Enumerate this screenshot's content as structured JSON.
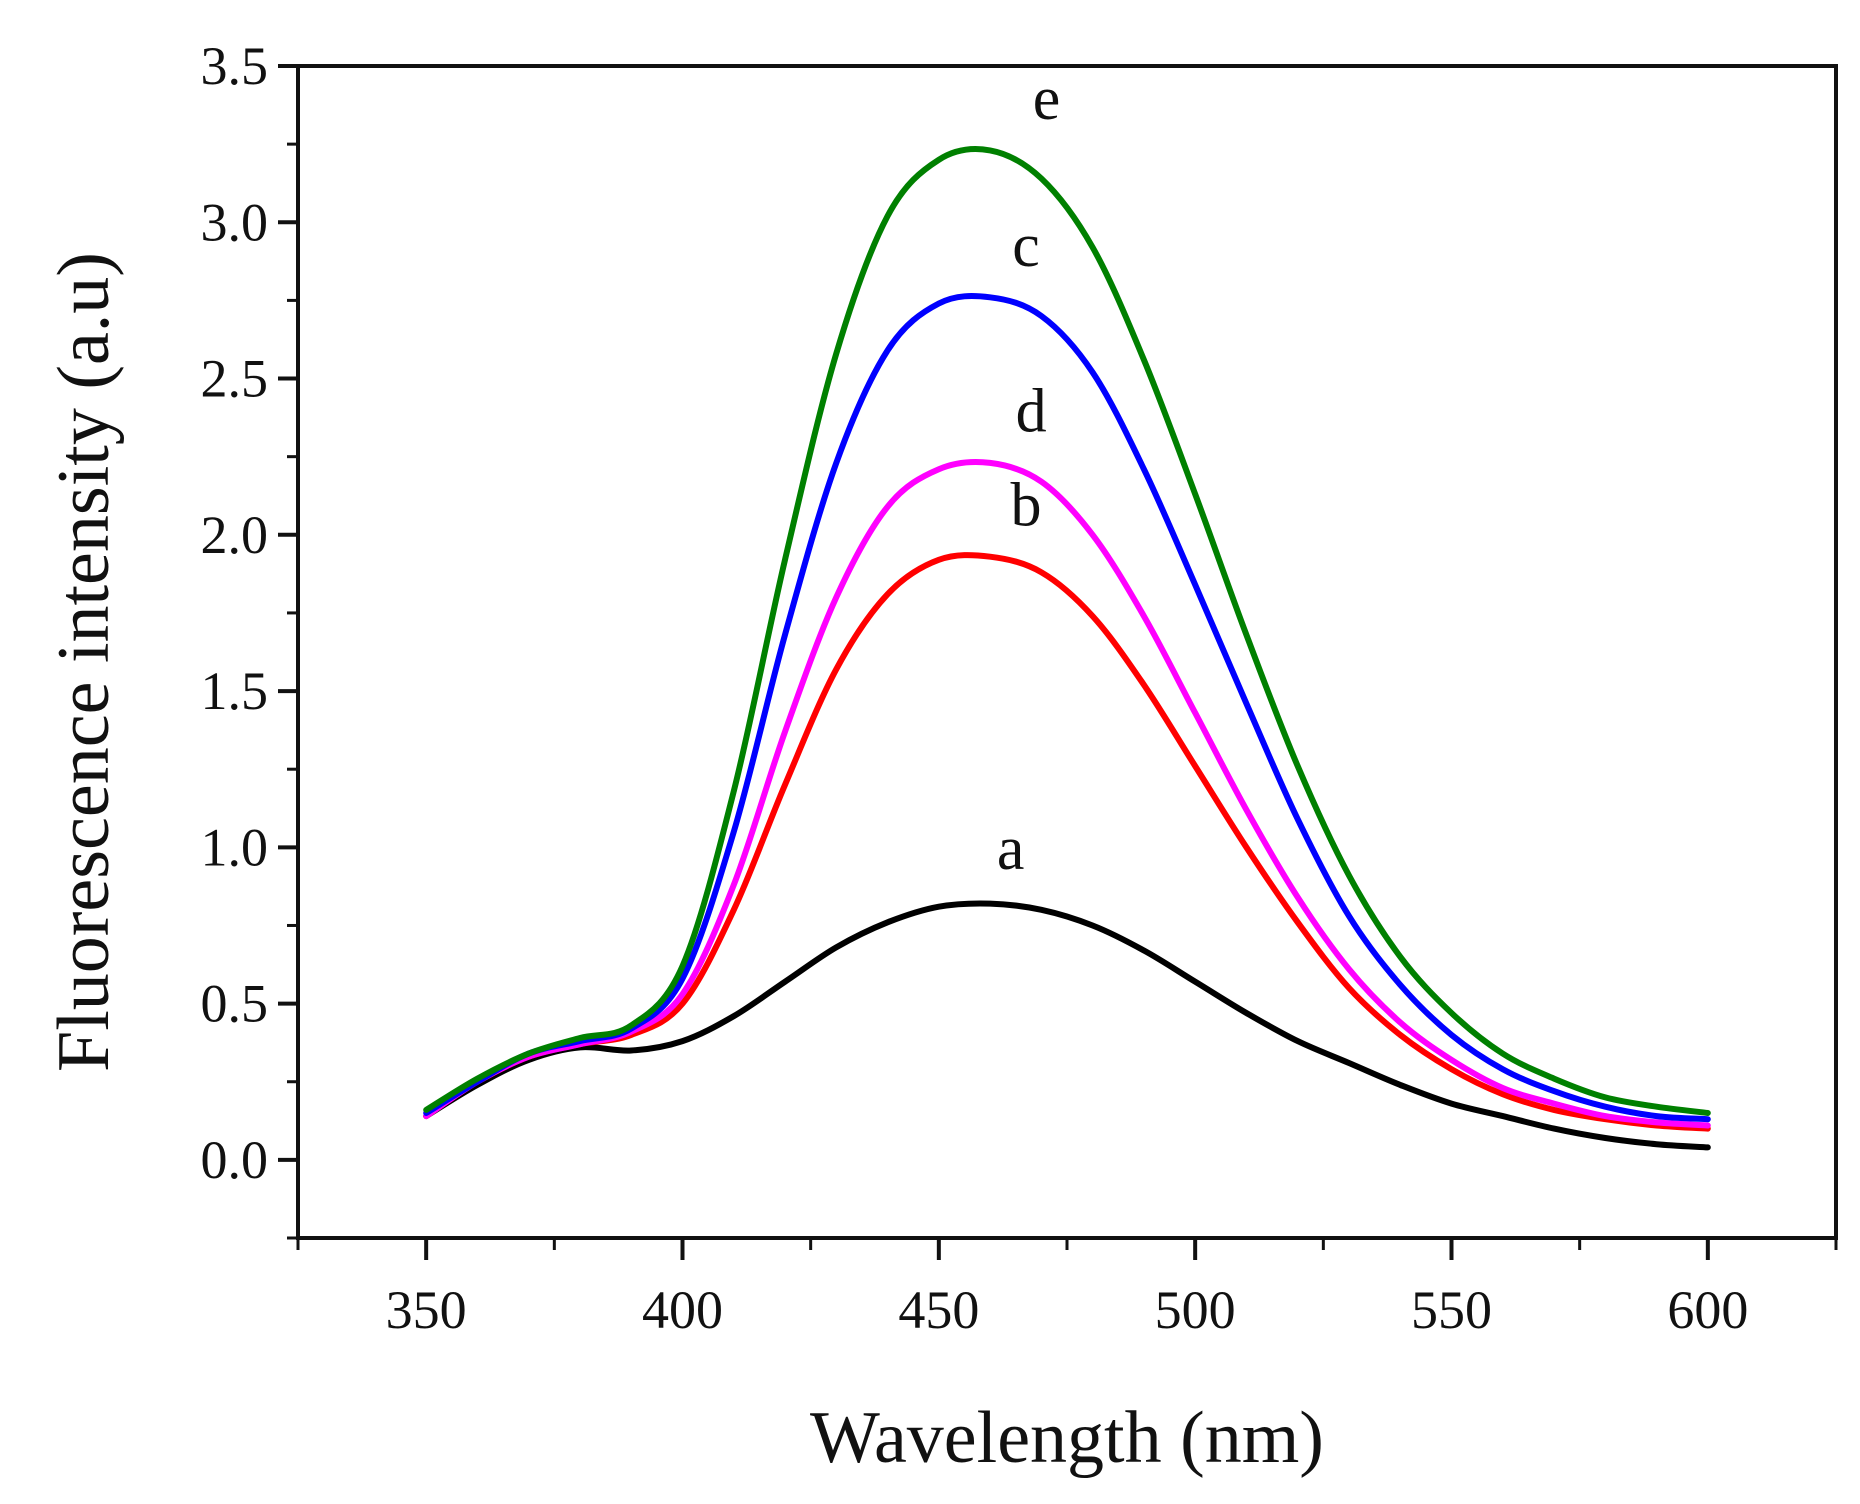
{
  "chart_data": {
    "type": "line",
    "xlabel": "Wavelength (nm)",
    "ylabel": "Fluorescence intensity (a.u)",
    "xlim": [
      325,
      625
    ],
    "ylim": [
      -0.25,
      3.5
    ],
    "x_ticks": [
      350,
      400,
      450,
      500,
      550,
      600
    ],
    "x_tick_labels": [
      "350",
      "400",
      "450",
      "500",
      "550",
      "600"
    ],
    "y_ticks": [
      0.0,
      0.5,
      1.0,
      1.5,
      2.0,
      2.5,
      3.0,
      3.5
    ],
    "y_tick_labels": [
      "0.0",
      "0.5",
      "1.0",
      "1.5",
      "2.0",
      "2.5",
      "3.0",
      "3.5"
    ],
    "grid": false,
    "legend": "none",
    "x": [
      350,
      360,
      370,
      380,
      390,
      400,
      410,
      420,
      430,
      440,
      450,
      460,
      470,
      480,
      490,
      500,
      510,
      520,
      530,
      540,
      550,
      560,
      570,
      580,
      590,
      600
    ],
    "series": [
      {
        "label": "a",
        "color": "#000000",
        "values": [
          0.14,
          0.24,
          0.32,
          0.36,
          0.35,
          0.38,
          0.46,
          0.57,
          0.68,
          0.76,
          0.81,
          0.82,
          0.8,
          0.75,
          0.67,
          0.57,
          0.47,
          0.38,
          0.31,
          0.24,
          0.18,
          0.14,
          0.1,
          0.07,
          0.05,
          0.04
        ]
      },
      {
        "label": "b",
        "color": "#ff0000",
        "values": [
          0.14,
          0.25,
          0.33,
          0.37,
          0.4,
          0.5,
          0.8,
          1.2,
          1.57,
          1.81,
          1.92,
          1.93,
          1.88,
          1.74,
          1.52,
          1.26,
          1.0,
          0.76,
          0.55,
          0.4,
          0.29,
          0.21,
          0.16,
          0.13,
          0.11,
          0.1
        ]
      },
      {
        "label": "c",
        "color": "#0000ff",
        "values": [
          0.15,
          0.25,
          0.34,
          0.38,
          0.42,
          0.58,
          1.05,
          1.68,
          2.23,
          2.59,
          2.74,
          2.76,
          2.7,
          2.52,
          2.21,
          1.84,
          1.46,
          1.09,
          0.78,
          0.56,
          0.4,
          0.29,
          0.22,
          0.17,
          0.14,
          0.13
        ]
      },
      {
        "label": "d",
        "color": "#ff00ff",
        "values": [
          0.14,
          0.25,
          0.33,
          0.37,
          0.41,
          0.53,
          0.88,
          1.37,
          1.8,
          2.09,
          2.21,
          2.23,
          2.17,
          2.0,
          1.74,
          1.43,
          1.12,
          0.84,
          0.61,
          0.44,
          0.32,
          0.23,
          0.18,
          0.14,
          0.12,
          0.11
        ]
      },
      {
        "label": "e",
        "color": "#008000",
        "values": [
          0.16,
          0.26,
          0.34,
          0.39,
          0.43,
          0.62,
          1.18,
          1.92,
          2.58,
          3.02,
          3.2,
          3.23,
          3.14,
          2.92,
          2.56,
          2.13,
          1.68,
          1.26,
          0.91,
          0.65,
          0.47,
          0.34,
          0.26,
          0.2,
          0.17,
          0.15
        ]
      }
    ],
    "curve_label_anchors": [
      {
        "label": "a",
        "x": 464,
        "y": 0.93
      },
      {
        "label": "b",
        "x": 467,
        "y": 2.03
      },
      {
        "label": "c",
        "x": 467,
        "y": 2.86
      },
      {
        "label": "d",
        "x": 468,
        "y": 2.33
      },
      {
        "label": "e",
        "x": 471,
        "y": 3.33
      }
    ]
  }
}
